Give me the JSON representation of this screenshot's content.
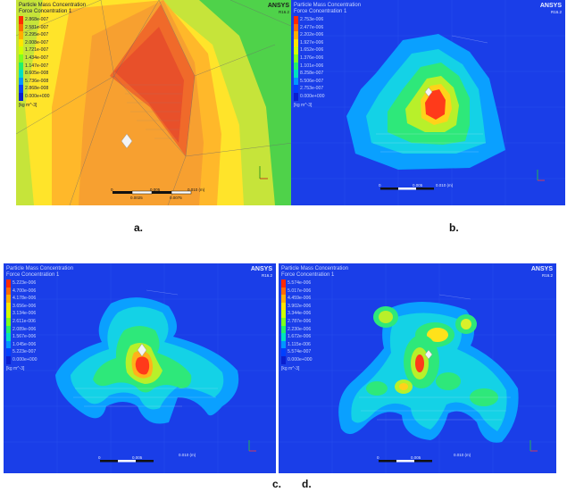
{
  "panels": [
    {
      "id": "a",
      "title": "Particle Mass Concentration",
      "subtitle": "Force Concentration 1",
      "software": "ANSYS",
      "version": "R16.2",
      "legend": [
        "2.868e-007",
        "2.581e-007",
        "2.295e-007",
        "2.008e-007",
        "1.721e-007",
        "1.434e-007",
        "1.147e-007",
        "8.605e-008",
        "5.736e-008",
        "2.868e-008",
        "0.000e+000"
      ],
      "unit": "[kg m^-3]",
      "scale": [
        "0",
        "0.005",
        "0.010 (m)",
        "0.0025",
        "0.0075"
      ]
    },
    {
      "id": "b",
      "title": "Particle Mass Concentration",
      "subtitle": "Force Concentration 1",
      "software": "ANSYS",
      "version": "R16.2",
      "legend": [
        "2.753e-006",
        "2.477e-006",
        "2.202e-006",
        "1.927e-006",
        "1.652e-006",
        "1.376e-006",
        "1.101e-006",
        "8.258e-007",
        "5.506e-007",
        "2.753e-007",
        "0.000e+000"
      ],
      "unit": "[kg m^-3]",
      "scale": [
        "0",
        "0.005",
        "0.010 (m)"
      ]
    },
    {
      "id": "c",
      "title": "Particle Mass Concentration",
      "subtitle": "Force Concentration 1",
      "software": "ANSYS",
      "version": "R16.2",
      "legend": [
        "5.223e-006",
        "4.700e-006",
        "4.178e-006",
        "3.656e-006",
        "3.134e-006",
        "2.611e-006",
        "2.089e-006",
        "1.567e-006",
        "1.045e-006",
        "5.223e-007",
        "0.000e+000"
      ],
      "unit": "[kg m^-3]",
      "scale": [
        "0",
        "0.005",
        "0.010 (m)"
      ]
    },
    {
      "id": "d",
      "title": "Particle Mass Concentration",
      "subtitle": "Force Concentration 1",
      "software": "ANSYS",
      "version": "R16.2",
      "legend": [
        "5.574e-006",
        "5.017e-006",
        "4.459e-006",
        "3.902e-006",
        "3.344e-006",
        "2.787e-006",
        "2.230e-006",
        "1.672e-006",
        "1.115e-006",
        "5.574e-007",
        "0.000e+000"
      ],
      "unit": "[kg m^-3]",
      "scale": [
        "0",
        "0.005",
        "0.010 (m)"
      ]
    }
  ],
  "legend_colors": [
    "#ff2a00",
    "#ff6a00",
    "#ffae00",
    "#ffe400",
    "#cfff00",
    "#7dff1c",
    "#22f06a",
    "#00e0c0",
    "#0096ff",
    "#0040ff",
    "#0a1fd0"
  ],
  "captions": {
    "a": "a.",
    "b": "b.",
    "c": "c.",
    "d": "d."
  }
}
